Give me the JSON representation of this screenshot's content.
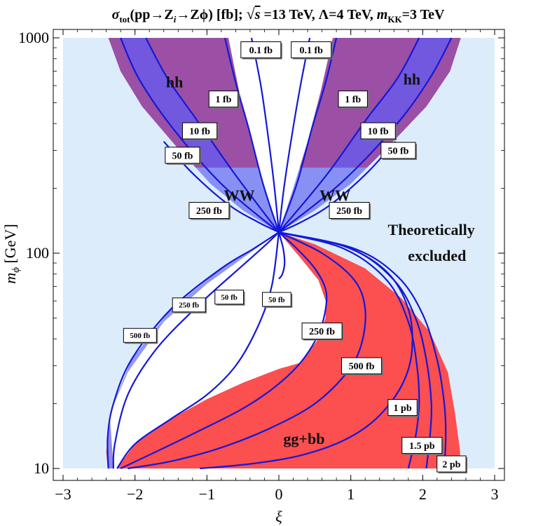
{
  "chart_data": {
    "type": "contour",
    "title": "σtot(pp→Zi→Zϕ) [fb]; √s =13 TeV, Λ=4 TeV, mKK=3 TeV",
    "title_parts": {
      "sigma": "σ",
      "sub": "tot",
      "process": "(pp→Z",
      "zi_sub": "i",
      "process2": "→Zϕ) [fb]; ",
      "sqrt_s": "s",
      "energy": " =13 TeV, Λ=4 TeV, ",
      "m": "m",
      "m_sub": "KK",
      "mkk_val": "=3 TeV"
    },
    "xlabel": "ξ",
    "ylabel_main": "m",
    "ylabel_sub": "ϕ",
    "ylabel_unit": " [GeV]",
    "x_range": [
      -3,
      3
    ],
    "y_range": [
      10,
      1000
    ],
    "y_scale": "log",
    "x_ticks": [
      "−3",
      "−2",
      "−1",
      "0",
      "1",
      "2",
      "3"
    ],
    "x_tick_values": [
      -3,
      -2,
      -1,
      0,
      1,
      2,
      3
    ],
    "y_ticks": [
      "10",
      "100",
      "1000"
    ],
    "y_tick_values": [
      10,
      100,
      1000
    ],
    "colors": {
      "excluded": "#dcecfb",
      "hh": "#9b50a5",
      "ww": "#8890f3",
      "mid_blue": "#6a59e9",
      "gg_bb": "#fb4f50",
      "contour": "#1418d8"
    },
    "region_labels": [
      {
        "text": "hh",
        "xi": -1.45,
        "m": 620
      },
      {
        "text": "hh",
        "xi": 1.85,
        "m": 640
      },
      {
        "text": "WW",
        "xi": -0.55,
        "m": 185
      },
      {
        "text": "WW",
        "xi": 0.78,
        "m": 185
      },
      {
        "text": "Theoretically",
        "xi": 2.12,
        "m": 128
      },
      {
        "text": "excluded",
        "xi": 2.2,
        "m": 97
      },
      {
        "text": "gg+bb",
        "xi": 0.35,
        "m": 13.7
      }
    ],
    "contour_labels": [
      {
        "text": "0.1 fb",
        "xi": -0.25,
        "m": 880
      },
      {
        "text": "0.1 fb",
        "xi": 0.45,
        "m": 880
      },
      {
        "text": "1 fb",
        "xi": -0.77,
        "m": 520
      },
      {
        "text": "1 fb",
        "xi": 1.03,
        "m": 520
      },
      {
        "text": "10 fb",
        "xi": -1.1,
        "m": 370
      },
      {
        "text": "10 fb",
        "xi": 1.38,
        "m": 370
      },
      {
        "text": "50 fb",
        "xi": -1.34,
        "m": 285
      },
      {
        "text": "50 fb",
        "xi": 1.66,
        "m": 300
      },
      {
        "text": "250 fb",
        "xi": -0.97,
        "m": 158
      },
      {
        "text": "250 fb",
        "xi": 0.98,
        "m": 158
      },
      {
        "text": "500 fb",
        "xi": -1.93,
        "m": 41.5
      },
      {
        "text": "250 fb",
        "xi": -1.25,
        "m": 57.5
      },
      {
        "text": "50 fb",
        "xi": -0.69,
        "m": 62.5
      },
      {
        "text": "50 fb",
        "xi": -0.03,
        "m": 61
      },
      {
        "text": "250 fb",
        "xi": 0.6,
        "m": 43.5
      },
      {
        "text": "500 fb",
        "xi": 1.15,
        "m": 30
      },
      {
        "text": "1 pb",
        "xi": 1.72,
        "m": 19.2
      },
      {
        "text": "1.5 pb",
        "xi": 1.99,
        "m": 12.8
      },
      {
        "text": "2 pb",
        "xi": 2.4,
        "m": 10.5
      }
    ],
    "regions": {
      "excluded_box": {
        "xi": [
          -3,
          3
        ],
        "m": [
          10,
          1000
        ]
      },
      "allowed_upper_outer": [
        [
          -2.37,
          1000
        ],
        [
          -2.2,
          700
        ],
        [
          -1.9,
          480
        ],
        [
          -1.45,
          320
        ],
        [
          -0.95,
          210
        ],
        [
          -0.5,
          158
        ],
        [
          0,
          125
        ],
        [
          0.5,
          158
        ],
        [
          1.0,
          210
        ],
        [
          1.55,
          320
        ],
        [
          2.05,
          480
        ],
        [
          2.38,
          700
        ],
        [
          2.53,
          1000
        ]
      ],
      "allowed_lower_outer": [
        [
          -2.38,
          10
        ],
        [
          -2.4,
          12
        ],
        [
          -2.35,
          15
        ],
        [
          -2.25,
          20
        ],
        [
          -2.0,
          30
        ],
        [
          -1.6,
          45
        ],
        [
          -1.0,
          68
        ],
        [
          -0.5,
          90
        ],
        [
          0,
          125
        ],
        [
          0.5,
          110
        ],
        [
          1.2,
          85
        ],
        [
          1.7,
          62
        ],
        [
          2.1,
          43
        ],
        [
          2.35,
          28
        ],
        [
          2.45,
          18
        ],
        [
          2.52,
          12
        ],
        [
          2.52,
          10
        ]
      ],
      "hh_cutoff_m": 250,
      "upper_white_left": [
        [
          -0.7,
          1000
        ],
        [
          -0.55,
          560
        ],
        [
          -0.38,
          330
        ],
        [
          -0.2,
          200
        ],
        [
          0,
          125
        ]
      ],
      "upper_white_right": [
        [
          0,
          125
        ],
        [
          0.2,
          200
        ],
        [
          0.4,
          330
        ],
        [
          0.58,
          560
        ],
        [
          0.75,
          1000
        ]
      ],
      "lower_white": [
        [
          0,
          125
        ],
        [
          -0.5,
          95
        ],
        [
          -1.0,
          72
        ],
        [
          -1.6,
          48
        ],
        [
          -2.1,
          28
        ],
        [
          -2.35,
          18
        ],
        [
          -2.3,
          10
        ],
        [
          -2.25,
          10
        ],
        [
          -2.0,
          13
        ],
        [
          -1.5,
          17
        ],
        [
          -1.0,
          21
        ],
        [
          -0.5,
          25
        ],
        [
          0,
          29
        ],
        [
          0.3,
          31
        ],
        [
          0.55,
          40
        ],
        [
          0.65,
          50
        ],
        [
          0.65,
          60
        ],
        [
          0.55,
          75
        ],
        [
          0.3,
          95
        ],
        [
          0,
          125
        ]
      ]
    },
    "contours": [
      {
        "name": "upper-0.1fb-left",
        "points": [
          [
            -0.38,
            1000
          ],
          [
            -0.25,
            600
          ],
          [
            -0.15,
            350
          ],
          [
            -0.06,
            200
          ],
          [
            0,
            125
          ]
        ]
      },
      {
        "name": "upper-0.1fb-right",
        "points": [
          [
            0.43,
            1000
          ],
          [
            0.3,
            600
          ],
          [
            0.18,
            350
          ],
          [
            0.07,
            200
          ],
          [
            0,
            125
          ]
        ]
      },
      {
        "name": "upper-1fb-left",
        "points": [
          [
            -0.75,
            1000
          ],
          [
            -0.6,
            620
          ],
          [
            -0.42,
            380
          ],
          [
            -0.22,
            210
          ],
          [
            0,
            125
          ]
        ]
      },
      {
        "name": "upper-1fb-right",
        "points": [
          [
            0.8,
            1000
          ],
          [
            0.65,
            620
          ],
          [
            0.46,
            380
          ],
          [
            0.25,
            210
          ],
          [
            0,
            125
          ]
        ]
      },
      {
        "name": "upper-10fb-left",
        "points": [
          [
            -1.85,
            1000
          ],
          [
            -1.55,
            650
          ],
          [
            -1.15,
            420
          ],
          [
            -0.6,
            230
          ],
          [
            0,
            125
          ]
        ]
      },
      {
        "name": "upper-10fb-right",
        "points": [
          [
            1.95,
            1000
          ],
          [
            1.65,
            650
          ],
          [
            1.22,
            420
          ],
          [
            0.66,
            230
          ],
          [
            0,
            125
          ]
        ]
      },
      {
        "name": "upper-50fb-left",
        "points": [
          [
            -2.2,
            1000
          ],
          [
            -1.95,
            650
          ],
          [
            -1.5,
            390
          ],
          [
            -0.8,
            210
          ],
          [
            0,
            125
          ]
        ]
      },
      {
        "name": "upper-50fb-right",
        "points": [
          [
            2.4,
            1000
          ],
          [
            2.1,
            650
          ],
          [
            1.62,
            390
          ],
          [
            0.85,
            210
          ],
          [
            0,
            125
          ]
        ]
      },
      {
        "name": "upper-250fb-left",
        "points": [
          [
            -1.6,
            330
          ],
          [
            -1.2,
            235
          ],
          [
            -0.7,
            168
          ],
          [
            -0.3,
            140
          ],
          [
            0,
            125
          ]
        ]
      },
      {
        "name": "upper-250fb-right",
        "points": [
          [
            1.62,
            330
          ],
          [
            1.22,
            235
          ],
          [
            0.72,
            168
          ],
          [
            0.32,
            140
          ],
          [
            0,
            125
          ]
        ]
      },
      {
        "name": "lower-500fb-left",
        "points": [
          [
            -2.37,
            10
          ],
          [
            -2.38,
            14
          ],
          [
            -2.3,
            20
          ],
          [
            -2.05,
            32
          ],
          [
            -1.5,
            55
          ],
          [
            -0.8,
            85
          ],
          [
            -0.35,
            105
          ],
          [
            0,
            125
          ]
        ]
      },
      {
        "name": "lower-250fb-left",
        "points": [
          [
            -2.3,
            10
          ],
          [
            -2.28,
            13
          ],
          [
            -2.1,
            22
          ],
          [
            -1.7,
            36
          ],
          [
            -1.1,
            58
          ],
          [
            -0.55,
            85
          ],
          [
            -0.2,
            108
          ],
          [
            0,
            125
          ]
        ]
      },
      {
        "name": "lower-50fb-left",
        "points": [
          [
            -2.25,
            10
          ],
          [
            -2.0,
            13
          ],
          [
            -1.5,
            17
          ],
          [
            -1.0,
            22
          ],
          [
            -0.6,
            30
          ],
          [
            -0.3,
            45
          ],
          [
            -0.1,
            70
          ],
          [
            0,
            125
          ]
        ]
      },
      {
        "name": "lower-50fb-mid",
        "points": [
          [
            0,
            125
          ],
          [
            0.06,
            105
          ],
          [
            0.08,
            90
          ],
          [
            0.05,
            80
          ],
          [
            0,
            76
          ]
        ]
      },
      {
        "name": "lower-50fb-bottom",
        "points": [
          [
            -2.2,
            10
          ],
          [
            -1.7,
            12
          ],
          [
            -1.1,
            15
          ],
          [
            -0.5,
            19
          ],
          [
            -0.05,
            24
          ],
          [
            0.3,
            31
          ],
          [
            0.55,
            42
          ],
          [
            0.65,
            55
          ],
          [
            0.65,
            68
          ],
          [
            0.5,
            85
          ],
          [
            0.25,
            105
          ],
          [
            0,
            125
          ]
        ]
      },
      {
        "name": "lower-250fb-bottom",
        "points": [
          [
            -2.1,
            10
          ],
          [
            -1.5,
            10.8
          ],
          [
            -0.8,
            12.5
          ],
          [
            -0.1,
            15.5
          ],
          [
            0.5,
            20
          ],
          [
            0.95,
            28
          ],
          [
            1.15,
            38
          ],
          [
            1.2,
            55
          ],
          [
            1.05,
            75
          ],
          [
            0.6,
            100
          ],
          [
            0,
            125
          ]
        ]
      },
      {
        "name": "lower-500fb-bottom",
        "points": [
          [
            -1.1,
            10
          ],
          [
            -0.4,
            10.5
          ],
          [
            0.3,
            11.5
          ],
          [
            0.9,
            13.5
          ],
          [
            1.35,
            17
          ],
          [
            1.7,
            24
          ],
          [
            1.85,
            35
          ],
          [
            1.8,
            55
          ],
          [
            1.5,
            82
          ],
          [
            0.9,
            108
          ],
          [
            0,
            125
          ]
        ]
      },
      {
        "name": "lower-1pb",
        "points": [
          [
            1.8,
            10
          ],
          [
            1.9,
            14
          ],
          [
            1.95,
            20
          ],
          [
            1.92,
            30
          ],
          [
            1.8,
            48
          ],
          [
            1.5,
            75
          ],
          [
            0.9,
            105
          ],
          [
            0,
            125
          ]
        ]
      },
      {
        "name": "lower-1.5pb",
        "points": [
          [
            2.05,
            10
          ],
          [
            2.1,
            14
          ],
          [
            2.12,
            20
          ],
          [
            2.05,
            32
          ],
          [
            1.9,
            50
          ],
          [
            1.6,
            75
          ],
          [
            1.0,
            105
          ],
          [
            0,
            125
          ]
        ]
      },
      {
        "name": "lower-2pb",
        "points": [
          [
            2.3,
            10
          ],
          [
            2.32,
            14
          ],
          [
            2.3,
            20
          ],
          [
            2.2,
            32
          ],
          [
            2.0,
            52
          ],
          [
            1.65,
            78
          ],
          [
            1.05,
            105
          ],
          [
            0,
            125
          ]
        ]
      }
    ]
  }
}
